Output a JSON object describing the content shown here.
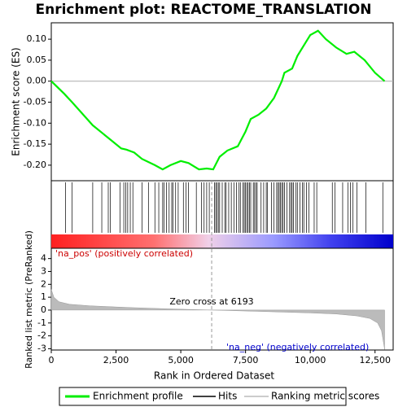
{
  "chart_data": [
    {
      "type": "line",
      "title": "Enrichment plot: REACTOME_TRANSLATION",
      "ylabel": "Enrichment score (ES)",
      "xlim": [
        0,
        13200
      ],
      "ylim": [
        -0.237,
        0.139
      ],
      "yticks": [
        {
          "value": 0.1,
          "label": "0.10"
        },
        0.05,
        {
          "value": 0,
          "label": "0.00"
        },
        -0.05,
        {
          "value": -0.1,
          "label": "-0.10"
        },
        -0.15,
        {
          "value": -0.2,
          "label": "-0.20"
        }
      ],
      "series": [
        {
          "name": "Enrichment profile",
          "color": "#00ee00",
          "x": [
            0,
            500,
            800,
            1600,
            2000,
            2300,
            2700,
            2900,
            3200,
            3500,
            4000,
            4300,
            4600,
            5000,
            5300,
            5700,
            6000,
            6250,
            6500,
            6800,
            7200,
            7500,
            7700,
            8000,
            8300,
            8600,
            8900,
            9000,
            9300,
            9500,
            9800,
            10000,
            10300,
            10600,
            11000,
            11400,
            11700,
            12100,
            12500,
            12870
          ],
          "values": [
            0,
            -0.03,
            -0.05,
            -0.105,
            -0.125,
            -0.14,
            -0.16,
            -0.163,
            -0.17,
            -0.185,
            -0.2,
            -0.21,
            -0.2,
            -0.19,
            -0.195,
            -0.21,
            -0.208,
            -0.21,
            -0.18,
            -0.165,
            -0.155,
            -0.12,
            -0.09,
            -0.08,
            -0.065,
            -0.04,
            0.0,
            0.02,
            0.03,
            0.06,
            0.09,
            0.11,
            0.12,
            0.1,
            0.08,
            0.065,
            0.07,
            0.05,
            0.02,
            0.0
          ]
        }
      ],
      "hits": {
        "name": "Hits",
        "color": "#000000",
        "x": [
          550,
          800,
          1600,
          1950,
          2200,
          2280,
          2650,
          2800,
          2880,
          2950,
          3050,
          3150,
          3500,
          3750,
          4000,
          4150,
          4300,
          4350,
          4450,
          4550,
          4650,
          4700,
          4800,
          4900,
          5100,
          5200,
          5300,
          5600,
          5800,
          5900,
          6000,
          6100,
          6300,
          6350,
          6400,
          6450,
          6500,
          6600,
          6700,
          6750,
          6850,
          6950,
          7050,
          7150,
          7250,
          7300,
          7400,
          7450,
          7500,
          7550,
          7600,
          7650,
          7700,
          7800,
          7850,
          7900,
          7950,
          8100,
          8200,
          8300,
          8350,
          8500,
          8600,
          8700,
          8750,
          8800,
          8850,
          8900,
          8950,
          9000,
          9100,
          9200,
          9250,
          9300,
          9350,
          9450,
          9500,
          9600,
          9700,
          9750,
          9850,
          9950,
          10150,
          10250,
          10850,
          10950,
          11250,
          11450,
          11550,
          11650,
          11800,
          12150,
          12800
        ]
      }
    },
    {
      "type": "area",
      "xlabel": "Rank in Ordered Dataset",
      "ylabel": "Ranked list metric (PreRanked)",
      "xlim": [
        0,
        13200
      ],
      "ylim": [
        -3.1,
        4.8
      ],
      "xticks": [
        0,
        {
          "value": 2500,
          "label": "2,500"
        },
        {
          "value": 5000,
          "label": "5,000"
        },
        {
          "value": 7500,
          "label": "7,500"
        },
        {
          "value": 10000,
          "label": "10,000"
        },
        {
          "value": 12500,
          "label": "12,500"
        }
      ],
      "yticks": [
        4,
        3,
        2,
        1,
        0,
        -1,
        -2,
        -3
      ],
      "series": [
        {
          "name": "Ranking metric scores",
          "color": "#bbbbbb",
          "x": [
            0,
            100,
            300,
            700,
            1500,
            3000,
            4500,
            6193,
            8000,
            10000,
            11000,
            11800,
            12300,
            12600,
            12750,
            12870
          ],
          "values": [
            1.6,
            1.0,
            0.65,
            0.45,
            0.33,
            0.2,
            0.1,
            0,
            -0.1,
            -0.22,
            -0.3,
            -0.45,
            -0.65,
            -1.0,
            -1.6,
            -3.05
          ]
        }
      ],
      "zero_cross": 6193,
      "annotations": [
        "'na_pos' (positively correlated)",
        "Zero cross at 6193",
        "'na_neg' (negatively correlated)"
      ]
    }
  ]
}
